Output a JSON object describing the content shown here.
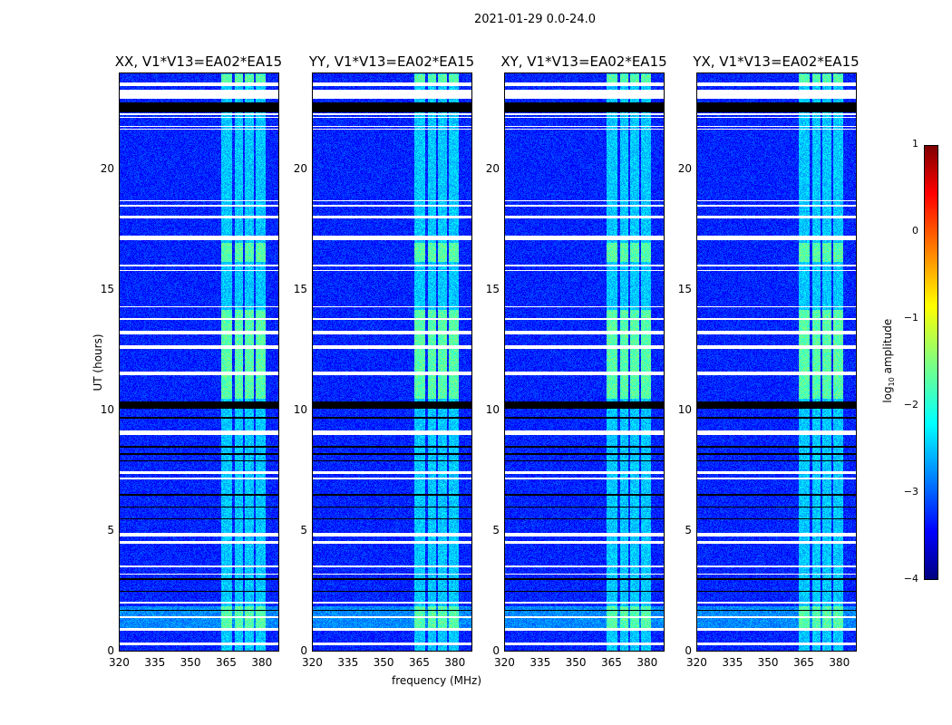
{
  "suptitle": "2021-01-29 0.0-24.0",
  "chart_data": {
    "type": "heatmap",
    "panels": [
      {
        "title": "XX, V1*V13=EA02*EA15"
      },
      {
        "title": "YY, V1*V13=EA02*EA15"
      },
      {
        "title": "XY, V1*V13=EA02*EA15"
      },
      {
        "title": "YX, V1*V13=EA02*EA15"
      }
    ],
    "xlabel": "frequency (MHz)",
    "ylabel": "UT (hours)",
    "xlim": [
      320,
      387.5
    ],
    "ylim": [
      0,
      24
    ],
    "xticks": [
      "320",
      "335",
      "350",
      "365",
      "380"
    ],
    "yticks": [
      "0",
      "5",
      "10",
      "15",
      "20"
    ],
    "colorbar": {
      "label_main": "log",
      "label_sub": "10",
      "label_rest": " amplitude",
      "ticks": [
        "1",
        "0",
        "−1",
        "−2",
        "−3",
        "−4"
      ],
      "range": [
        -4,
        1
      ],
      "colormap": "jet"
    },
    "background_log_amplitude": -3.2,
    "rfi_bands_mhz": [
      [
        363,
        367.5
      ],
      [
        368.5,
        372
      ],
      [
        373,
        376.5
      ],
      [
        377.5,
        381.5
      ]
    ],
    "rfi_log_amplitude": -2.1,
    "flagged_hours": [
      [
        23.5,
        23.65
      ],
      [
        22.95,
        23.35
      ],
      [
        22.3,
        22.35
      ],
      [
        22.18,
        22.22
      ],
      [
        21.8,
        21.85
      ],
      [
        21.7,
        21.74
      ],
      [
        18.7,
        18.75
      ],
      [
        18.5,
        18.55
      ],
      [
        18.0,
        18.1
      ],
      [
        17.1,
        17.3
      ],
      [
        16.0,
        16.1
      ],
      [
        15.8,
        15.85
      ],
      [
        14.3,
        14.35
      ],
      [
        13.8,
        13.85
      ],
      [
        13.2,
        13.35
      ],
      [
        12.6,
        12.75
      ],
      [
        11.5,
        11.65
      ],
      [
        9.0,
        9.2
      ],
      [
        7.4,
        7.5
      ],
      [
        7.15,
        7.25
      ],
      [
        4.8,
        4.95
      ],
      [
        4.5,
        4.6
      ],
      [
        3.5,
        3.6
      ],
      [
        3.2,
        3.25
      ],
      [
        2.0,
        2.1
      ],
      [
        1.4,
        1.5
      ],
      [
        0.9,
        1.0
      ],
      [
        0.3,
        0.4
      ]
    ],
    "zero_hours": [
      [
        22.4,
        22.8
      ],
      [
        10.1,
        10.4
      ],
      [
        9.7,
        9.75
      ],
      [
        8.5,
        8.55
      ],
      [
        8.2,
        8.25
      ],
      [
        7.9,
        7.95
      ],
      [
        6.5,
        6.55
      ],
      [
        6.0,
        6.05
      ],
      [
        5.5,
        5.55
      ],
      [
        3.0,
        3.05
      ],
      [
        2.5,
        2.55
      ],
      [
        1.7,
        1.75
      ]
    ],
    "bright_hours": [
      [
        23.65,
        24
      ],
      [
        16.2,
        17.0
      ],
      [
        10.5,
        14.2
      ],
      [
        12.85,
        13.2
      ],
      [
        1.0,
        1.9
      ]
    ]
  }
}
